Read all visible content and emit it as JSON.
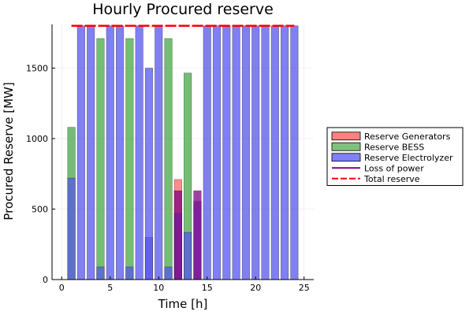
{
  "chart_data": {
    "type": "bar",
    "title": "Hourly Procured reserve",
    "xlabel": "Time [h]",
    "ylabel": "Procured Reserve [MW]",
    "xlim": [
      -1,
      26
    ],
    "ylim": [
      0,
      1810
    ],
    "xticks": [
      0,
      5,
      10,
      15,
      20,
      25
    ],
    "yticks": [
      0,
      500,
      1000,
      1500
    ],
    "grid": true,
    "legend_position": "outside-right",
    "x": [
      1,
      2,
      3,
      4,
      5,
      6,
      7,
      8,
      9,
      10,
      11,
      12,
      13,
      14,
      15,
      16,
      17,
      18,
      19,
      20,
      21,
      22,
      23,
      24
    ],
    "series": [
      {
        "name": "Reserve Generators",
        "kind": "bar",
        "color": "#ff6666",
        "values": [
          0,
          0,
          0,
          0,
          0,
          0,
          0,
          0,
          0,
          0,
          0,
          710,
          0,
          0,
          0,
          0,
          0,
          0,
          0,
          0,
          0,
          0,
          0,
          0
        ]
      },
      {
        "name": "Reserve BESS",
        "kind": "bar",
        "color": "#45a845",
        "values": [
          1080,
          0,
          0,
          1710,
          0,
          0,
          1710,
          0,
          0,
          0,
          1710,
          0,
          1465,
          0,
          0,
          0,
          0,
          0,
          0,
          0,
          0,
          0,
          0,
          0
        ]
      },
      {
        "name": "Reserve Electrolyzer",
        "kind": "bar",
        "color": "#5555ee",
        "values": [
          720,
          1800,
          1800,
          90,
          1800,
          1800,
          90,
          1800,
          300,
          1800,
          90,
          470,
          335,
          555,
          1800,
          1800,
          1800,
          1800,
          1800,
          1800,
          1800,
          1800,
          1800,
          1800
        ]
      },
      {
        "name": "Loss of power",
        "kind": "bar",
        "color": "#800080",
        "values": [
          0,
          0,
          0,
          0,
          0,
          0,
          0,
          0,
          0,
          0,
          0,
          630,
          0,
          630,
          0,
          0,
          0,
          0,
          0,
          0,
          0,
          0,
          0,
          0
        ]
      },
      {
        "name": "Total reserve",
        "kind": "dashed-line",
        "color": "#ff0000",
        "y": 1800,
        "x_range": [
          1,
          24
        ]
      }
    ],
    "extra_bars": {
      "electrolyzer_hour_9": 1500
    }
  },
  "legend": {
    "items": [
      {
        "label": "Reserve Generators",
        "swatch": "#ff8080",
        "type": "box"
      },
      {
        "label": "Reserve BESS",
        "swatch": "#80c080",
        "type": "box"
      },
      {
        "label": "Reserve Electrolyzer",
        "swatch": "#8080f8",
        "type": "box"
      },
      {
        "label": "Loss of power",
        "swatch": "#800080",
        "type": "line"
      },
      {
        "label": "Total reserve",
        "swatch": "#ff0000",
        "type": "dash"
      }
    ]
  }
}
